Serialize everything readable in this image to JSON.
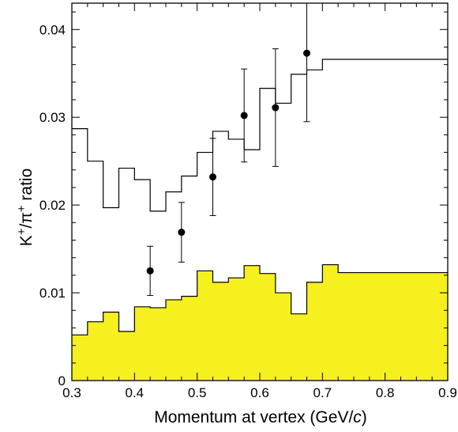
{
  "chart_data": {
    "type": "line",
    "title": "",
    "xlabel": "Momentum at vertex (GeV/c)",
    "xlabel_parts": {
      "main": "Momentum at vertex (GeV/",
      "italic": "c",
      "close": ")"
    },
    "ylabel_parts": {
      "k": "K",
      "plus1": "+",
      "slash_pi": "/π",
      "plus2": "+",
      "ratio": " ratio"
    },
    "xlim": [
      0.3,
      0.9
    ],
    "ylim": [
      0,
      0.043
    ],
    "x_ticks": [
      0.3,
      0.4,
      0.5,
      0.6,
      0.7,
      0.8,
      0.9
    ],
    "x_tick_labels": [
      "0.3",
      "0.4",
      "0.5",
      "0.6",
      "0.7",
      "0.8",
      "0.9"
    ],
    "y_ticks": [
      0,
      0.01,
      0.02,
      0.03,
      0.04
    ],
    "y_tick_labels": [
      "0",
      "0.01",
      "0.02",
      "0.03",
      "0.04"
    ],
    "grid": false,
    "series": [
      {
        "kind": "filled-histogram",
        "color": "#f5f01e",
        "bin_edges": [
          0.3,
          0.325,
          0.35,
          0.375,
          0.4,
          0.425,
          0.45,
          0.475,
          0.5,
          0.525,
          0.55,
          0.575,
          0.6,
          0.625,
          0.65,
          0.675,
          0.7,
          0.725,
          0.75,
          0.775,
          0.8,
          0.825,
          0.85,
          0.875,
          0.9
        ],
        "values": [
          0.0052,
          0.0067,
          0.0078,
          0.0056,
          0.0084,
          0.0083,
          0.0092,
          0.0096,
          0.0125,
          0.0112,
          0.0117,
          0.0131,
          0.0122,
          0.01,
          0.0076,
          0.0112,
          0.0132,
          0.0123,
          0.0123,
          0.0123,
          0.0123,
          0.0123,
          0.0123,
          0.0123
        ]
      },
      {
        "kind": "line-histogram",
        "color": "#000000",
        "bin_edges": [
          0.3,
          0.325,
          0.35,
          0.375,
          0.4,
          0.425,
          0.45,
          0.475,
          0.5,
          0.525,
          0.55,
          0.575,
          0.6,
          0.625,
          0.65,
          0.675,
          0.7,
          0.725,
          0.75,
          0.775,
          0.8,
          0.825,
          0.85,
          0.875,
          0.9
        ],
        "values": [
          0.0287,
          0.025,
          0.0197,
          0.0242,
          0.0229,
          0.0193,
          0.0215,
          0.0233,
          0.026,
          0.0284,
          0.0275,
          0.0263,
          0.0333,
          0.0316,
          0.0349,
          0.0354,
          0.0366,
          0.0366,
          0.0366,
          0.0366,
          0.0366,
          0.0366,
          0.0366,
          0.0366
        ]
      },
      {
        "kind": "points-with-errors",
        "color": "#000000",
        "points": [
          {
            "x": 0.425,
            "y": 0.0125,
            "err_low": 0.0097,
            "err_high": 0.0153
          },
          {
            "x": 0.475,
            "y": 0.0169,
            "err_low": 0.0135,
            "err_high": 0.0203
          },
          {
            "x": 0.525,
            "y": 0.0232,
            "err_low": 0.0188,
            "err_high": 0.0276
          },
          {
            "x": 0.575,
            "y": 0.0302,
            "err_low": 0.0249,
            "err_high": 0.0355
          },
          {
            "x": 0.625,
            "y": 0.0311,
            "err_low": 0.0244,
            "err_high": 0.0378
          },
          {
            "x": 0.675,
            "y": 0.0373,
            "err_low": 0.0295,
            "err_high": 0.043
          }
        ]
      }
    ]
  }
}
